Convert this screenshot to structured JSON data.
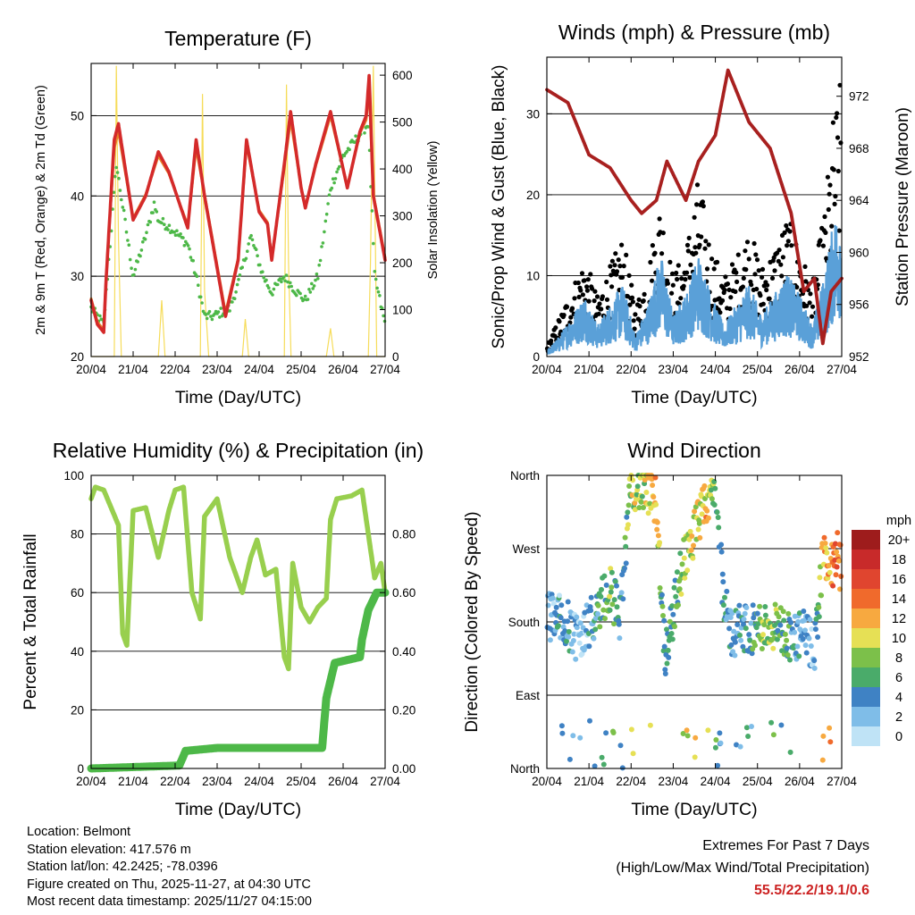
{
  "colors": {
    "red": "#d42a2a",
    "orange": "#e8862a",
    "green": "#4db848",
    "yellow": "#f6dc5a",
    "blue": "#5aa0d8",
    "black": "#000000",
    "maroon": "#a8201f",
    "rh": "#98cf4e",
    "precip": "#4db848"
  },
  "chart_data": [
    {
      "id": "temperature",
      "type": "line",
      "title": "Temperature (F)",
      "xlabel": "Time (Day/UTC)",
      "ylabel": "2m & 9m T (Red, Orange) & 2m Td (Green)",
      "ylabel2": "Solar Insolation (Yellow)",
      "x_ticklabels": [
        "20/04",
        "21/04",
        "22/04",
        "23/04",
        "24/04",
        "25/04",
        "26/04",
        "27/04"
      ],
      "xlim": [
        0,
        7
      ],
      "ylim": [
        20,
        56.5
      ],
      "yticks": [
        20,
        30,
        40,
        50
      ],
      "ylim2": [
        0,
        625
      ],
      "yticks2": [
        0,
        100,
        200,
        300,
        400,
        500,
        600
      ],
      "series": [
        {
          "name": "2m T",
          "color": "red",
          "x": [
            0,
            0.15,
            0.3,
            0.35,
            0.55,
            0.65,
            1.0,
            1.3,
            1.6,
            1.85,
            2.3,
            2.5,
            2.7,
            3.2,
            3.5,
            3.7,
            4.0,
            4.2,
            4.3,
            4.6,
            4.75,
            5.0,
            5.1,
            5.35,
            5.7,
            6.1,
            6.4,
            6.55,
            6.62,
            6.72,
            7.0
          ],
          "y": [
            27,
            24,
            23,
            29,
            47,
            49,
            37,
            40,
            45.5,
            43,
            36,
            47,
            40,
            25,
            32,
            47,
            38,
            36.5,
            32,
            44,
            50.5,
            41,
            38.5,
            44,
            50.5,
            41,
            48,
            50,
            55,
            40,
            32
          ]
        },
        {
          "name": "9m T",
          "color": "orange",
          "x": [
            0,
            0.15,
            0.3,
            0.35,
            0.55,
            0.65,
            1.0,
            1.3,
            1.6,
            1.85,
            2.3,
            2.5,
            2.7,
            3.2,
            3.5,
            3.7,
            4.0,
            4.2,
            4.3,
            4.6,
            4.75,
            5.0,
            5.1,
            5.35,
            5.7,
            6.1,
            6.4,
            6.55,
            6.62,
            6.72,
            7.0
          ],
          "y": [
            27.2,
            24.3,
            23.3,
            29.2,
            46,
            48,
            37.2,
            40.2,
            45,
            42.8,
            36.3,
            46,
            40.2,
            25.4,
            32.2,
            46.5,
            38.2,
            36.7,
            32.2,
            43.5,
            49.5,
            41.1,
            38.7,
            43.8,
            50,
            41.2,
            47.8,
            49.5,
            53.5,
            40.2,
            32.3
          ]
        },
        {
          "name": "2m Td",
          "color": "green",
          "x": [
            0,
            0.3,
            0.6,
            1.0,
            1.3,
            1.5,
            1.6,
            1.9,
            2.3,
            2.5,
            2.7,
            2.9,
            3.3,
            3.5,
            3.8,
            4.1,
            4.3,
            4.6,
            4.9,
            5.1,
            5.4,
            5.7,
            6.0,
            6.3,
            6.6,
            6.75,
            7.0
          ],
          "y": [
            26,
            24,
            44,
            30,
            35,
            39,
            37,
            36,
            34,
            30,
            25,
            25,
            26,
            29,
            35,
            30,
            28,
            30,
            28,
            27,
            30,
            41,
            45,
            47,
            49,
            30,
            24
          ]
        },
        {
          "name": "Solar",
          "color": "yellow",
          "axis": "right",
          "x": [
            0,
            0.55,
            0.6,
            0.65,
            0.72,
            1.0,
            1.6,
            1.68,
            1.76,
            2.0,
            2.6,
            2.65,
            2.7,
            2.8,
            3.0,
            3.6,
            3.67,
            3.75,
            4.0,
            4.6,
            4.65,
            4.7,
            4.76,
            5.0,
            5.6,
            5.7,
            5.78,
            6.0,
            6.6,
            6.65,
            6.72,
            6.8,
            7.0
          ],
          "y": [
            0,
            0,
            620,
            250,
            0,
            0,
            0,
            120,
            0,
            0,
            0,
            560,
            140,
            0,
            0,
            0,
            80,
            0,
            0,
            0,
            580,
            200,
            0,
            0,
            0,
            60,
            0,
            0,
            0,
            200,
            620,
            0,
            0
          ]
        }
      ]
    },
    {
      "id": "winds",
      "type": "line",
      "title": "Winds (mph) & Pressure (mb)",
      "xlabel": "Time (Day/UTC)",
      "ylabel": "Sonic/Prop Wind & Gust (Blue, Black)",
      "ylabel2": "Station Pressure (Maroon)",
      "x_ticklabels": [
        "20/04",
        "21/04",
        "22/04",
        "23/04",
        "24/04",
        "25/04",
        "26/04",
        "27/04"
      ],
      "xlim": [
        0,
        7
      ],
      "ylim": [
        0,
        37
      ],
      "yticks": [
        0,
        10,
        20,
        30
      ],
      "ylim2": [
        952,
        975
      ],
      "yticks2": [
        952,
        956,
        960,
        964,
        968,
        972
      ],
      "series": [
        {
          "name": "Gust",
          "color": "black",
          "x": [
            0,
            0.3,
            0.6,
            0.9,
            1.2,
            1.5,
            1.8,
            2.1,
            2.4,
            2.7,
            3.0,
            3.3,
            3.6,
            3.9,
            4.2,
            4.5,
            4.8,
            5.1,
            5.4,
            5.7,
            6.0,
            6.3,
            6.6,
            6.8,
            7.0
          ],
          "y": [
            1,
            4,
            7,
            10,
            6,
            9,
            12,
            5,
            9,
            16,
            8,
            11,
            18,
            11,
            8,
            10,
            13,
            9,
            11,
            14,
            11,
            7,
            15,
            24,
            28
          ]
        },
        {
          "name": "Wind",
          "color": "blue",
          "x": [
            0,
            0.3,
            0.6,
            0.9,
            1.2,
            1.5,
            1.8,
            2.1,
            2.4,
            2.7,
            3.0,
            3.3,
            3.6,
            3.9,
            4.2,
            4.5,
            4.8,
            5.1,
            5.4,
            5.7,
            6.0,
            6.3,
            6.6,
            6.8,
            7.0
          ],
          "y": [
            0.5,
            2,
            4,
            6,
            3,
            5,
            7,
            2,
            5,
            10,
            4,
            6,
            10,
            6,
            3,
            5,
            7,
            4,
            6,
            8,
            6,
            3,
            8,
            13,
            16
          ]
        },
        {
          "name": "Pressure",
          "color": "maroon",
          "axis": "right",
          "x": [
            0,
            0.5,
            1.0,
            1.5,
            2.0,
            2.25,
            2.6,
            2.85,
            3.3,
            3.6,
            4.0,
            4.3,
            4.8,
            5.3,
            5.8,
            6.1,
            6.35,
            6.55,
            6.75,
            7.0
          ],
          "y": [
            972.5,
            971.5,
            967.5,
            966.5,
            964,
            963,
            964,
            967,
            964,
            967,
            969,
            974,
            970,
            968,
            963,
            957,
            958,
            953,
            957,
            958
          ]
        }
      ]
    },
    {
      "id": "humidity",
      "type": "line",
      "title": "Relative Humidity (%) & Precipitation (in)",
      "xlabel": "Time (Day/UTC)",
      "ylabel": "Percent & Total Rainfall",
      "x_ticklabels": [
        "20/04",
        "21/04",
        "22/04",
        "23/04",
        "24/04",
        "25/04",
        "26/04",
        "27/04"
      ],
      "xlim": [
        0,
        7
      ],
      "ylim": [
        0,
        100
      ],
      "yticks": [
        0,
        20,
        40,
        60,
        80,
        100
      ],
      "ylim2": [
        0,
        1.0
      ],
      "yticks2_labels": [
        "0.00",
        "0.20",
        "0.40",
        "0.60",
        "0.80"
      ],
      "series": [
        {
          "name": "RH",
          "color": "rh",
          "x": [
            0.0,
            0.1,
            0.3,
            0.65,
            0.75,
            0.85,
            1.0,
            1.3,
            1.6,
            1.85,
            2.0,
            2.2,
            2.4,
            2.6,
            2.7,
            3.0,
            3.3,
            3.6,
            3.8,
            3.95,
            4.15,
            4.4,
            4.6,
            4.7,
            4.8,
            5.0,
            5.2,
            5.4,
            5.6,
            5.7,
            5.85,
            6.2,
            6.45,
            6.6,
            6.75,
            6.9,
            7.0
          ],
          "y": [
            92,
            96,
            95,
            83,
            46,
            42,
            88,
            89,
            72,
            88,
            95,
            96,
            60,
            51,
            86,
            92,
            72,
            60,
            72,
            78,
            66,
            68,
            38,
            34,
            70,
            55,
            50,
            55,
            58,
            85,
            92,
            93,
            95,
            80,
            65,
            70,
            60
          ]
        },
        {
          "name": "Precip",
          "color": "precip",
          "axis": "right",
          "x": [
            0,
            2.1,
            2.25,
            3.0,
            5.5,
            5.6,
            5.8,
            6.4,
            6.45,
            6.6,
            6.8,
            7.0
          ],
          "y": [
            0,
            0.01,
            0.06,
            0.07,
            0.07,
            0.24,
            0.36,
            0.38,
            0.44,
            0.54,
            0.6,
            0.6
          ]
        }
      ]
    },
    {
      "id": "wind_direction",
      "type": "scatter",
      "title": "Wind Direction",
      "xlabel": "Time (Day/UTC)",
      "ylabel": "Direction (Colored By Speed)",
      "x_ticklabels": [
        "20/04",
        "21/04",
        "22/04",
        "23/04",
        "24/04",
        "25/04",
        "26/04",
        "27/04"
      ],
      "xlim": [
        0,
        7
      ],
      "ylim": [
        0,
        360
      ],
      "yticks": [
        0,
        90,
        180,
        270,
        360
      ],
      "ytick_labels": [
        "North",
        "East",
        "South",
        "West",
        "North"
      ],
      "colorbar": {
        "title": "mph",
        "labels": [
          "20+",
          "18",
          "16",
          "14",
          "12",
          "10",
          "8",
          "6",
          "4",
          "2",
          "0"
        ],
        "colors": [
          "#9e1c1c",
          "#c82a2a",
          "#e0452f",
          "#f06a2c",
          "#f7a940",
          "#e6e055",
          "#7cc04a",
          "#4aab6a",
          "#3f82c4",
          "#7fbde8",
          "#bfe3f6"
        ]
      },
      "series": [
        {
          "name": "direction",
          "x": [
            0.0,
            0.25,
            0.5,
            0.75,
            1.0,
            1.25,
            1.5,
            1.75,
            2.0,
            2.2,
            2.4,
            2.6,
            2.8,
            3.0,
            3.25,
            3.5,
            3.75,
            4.0,
            4.2,
            4.4,
            4.6,
            4.85,
            5.1,
            5.35,
            5.6,
            5.85,
            6.1,
            6.35,
            6.55,
            6.75,
            6.9,
            7.0
          ],
          "y": [
            185,
            190,
            175,
            160,
            175,
            200,
            220,
            185,
            350,
            345,
            340,
            330,
            140,
            190,
            260,
            290,
            320,
            350,
            200,
            165,
            175,
            170,
            175,
            175,
            170,
            160,
            165,
            145,
            260,
            250,
            260,
            240
          ],
          "speed": [
            3,
            4,
            5,
            3,
            4,
            6,
            8,
            5,
            10,
            9,
            11,
            12,
            5,
            6,
            9,
            11,
            12,
            8,
            4,
            5,
            4,
            6,
            8,
            9,
            7,
            5,
            4,
            3,
            12,
            14,
            16,
            13
          ]
        }
      ]
    }
  ],
  "meta": {
    "location": "Location: Belmont",
    "elevation": "Station elevation: 417.576 m",
    "latlon": "Station lat/lon: 42.2425; -78.0396",
    "created": "Figure created on Thu, 2025-11-27, at 04:30 UTC",
    "recent": "Most recent data timestamp: 2025/11/27 04:15:00"
  },
  "extremes": {
    "title": "Extremes For Past 7 Days",
    "subtitle": "(High/Low/Max Wind/Total Precipitation)",
    "values": "55.5/22.2/19.1/0.6"
  }
}
